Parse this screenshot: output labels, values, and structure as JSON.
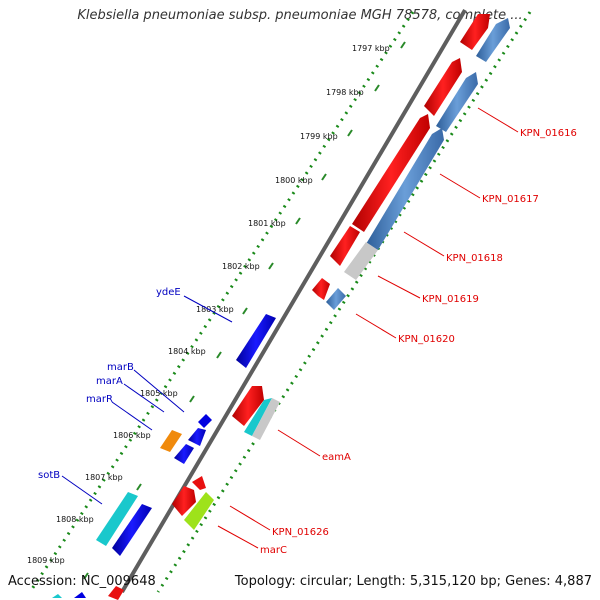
{
  "title": "Klebsiella pneumoniae subsp. pneumoniae MGH 78578, complete ...",
  "footer": {
    "accession": "Accession: NC_009648",
    "summary": "Topology: circular; Length: 5,315,120 bp; Genes: 4,887"
  },
  "ticks": [
    "1797 kbp",
    "1798 kbp",
    "1799 kbp",
    "1800 kbp",
    "1801 kbp",
    "1802 kbp",
    "1803 kbp",
    "1804 kbp",
    "1805 kbp",
    "1806 kbp",
    "1807 kbp",
    "1808 kbp",
    "1809 kbp"
  ],
  "gene_labels_red": [
    "KPN_01616",
    "KPN_01617",
    "KPN_01618",
    "KPN_01619",
    "KPN_01620",
    "eamA",
    "KPN_01626",
    "marC"
  ],
  "gene_labels_blue": [
    "ydeE",
    "marB",
    "marA",
    "marR",
    "sotB"
  ],
  "colors": {
    "forward_gene": "#e81010",
    "reverse_gene": "#0000e0",
    "cog_blue": "#4a7fbf",
    "cog_grey": "#c8c8c8",
    "cog_cyan": "#19c8cc",
    "cog_orange": "#f08a0c",
    "cog_green": "#9ee21a",
    "backbone": "#6a6a6a",
    "gc_dots": "#1a8a1a"
  }
}
